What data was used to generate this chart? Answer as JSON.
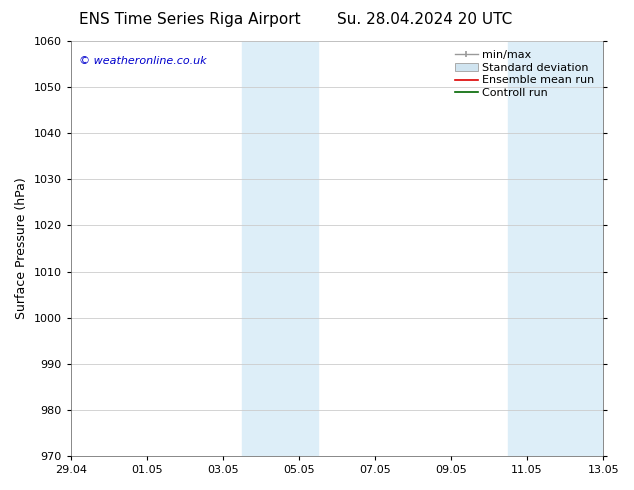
{
  "title_left": "ENS Time Series Riga Airport",
  "title_right": "Su. 28.04.2024 20 UTC",
  "ylabel": "Surface Pressure (hPa)",
  "ylim": [
    970,
    1060
  ],
  "yticks": [
    970,
    980,
    990,
    1000,
    1010,
    1020,
    1030,
    1040,
    1050,
    1060
  ],
  "xtick_labels": [
    "29.04",
    "01.05",
    "03.05",
    "05.05",
    "07.05",
    "09.05",
    "11.05",
    "13.05"
  ],
  "xtick_positions": [
    0,
    2,
    4,
    6,
    8,
    10,
    12,
    14
  ],
  "xlim": [
    0,
    14
  ],
  "background_color": "#ffffff",
  "plot_bg_color": "#ffffff",
  "shaded_regions": [
    {
      "x_start": 4.5,
      "x_end": 5.5,
      "color": "#ddeef8"
    },
    {
      "x_start": 5.5,
      "x_end": 6.5,
      "color": "#ddeef8"
    },
    {
      "x_start": 11.5,
      "x_end": 12.5,
      "color": "#ddeef8"
    },
    {
      "x_start": 12.5,
      "x_end": 14.0,
      "color": "#ddeef8"
    }
  ],
  "watermark_text": "© weatheronline.co.uk",
  "watermark_color": "#0000cc",
  "title_fontsize": 11,
  "tick_fontsize": 8,
  "ylabel_fontsize": 9,
  "legend_fontsize": 8,
  "grid_color": "#cccccc"
}
